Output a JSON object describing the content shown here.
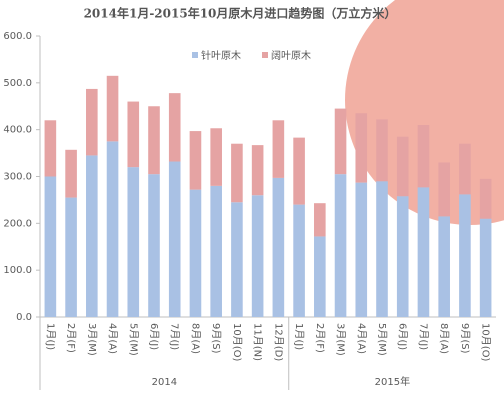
{
  "chart_data": {
    "type": "bar",
    "stacked": true,
    "title": "2014年1月-2015年10月原木月进口趋势图（万立方米）",
    "categories": [
      "1月(J)",
      "2月(F)",
      "3月(M)",
      "4月(A)",
      "5月(M)",
      "6月(J)",
      "7月(J)",
      "8月(A)",
      "9月(S)",
      "10月(O)",
      "11月(N)",
      "12月(D)",
      "1月(J)",
      "2月(F)",
      "3月(M)",
      "4月(A)",
      "5月(M)",
      "6月(J)",
      "7月(J)",
      "8月(A)",
      "9月(S)",
      "10月(O)"
    ],
    "year_labels": [
      "2014",
      "2015年"
    ],
    "series": [
      {
        "name": "针叶原木",
        "color": "#a9c1e4",
        "values": [
          300,
          255,
          345,
          375,
          320,
          305,
          332,
          272,
          280,
          245,
          260,
          297,
          240,
          172,
          305,
          287,
          290,
          258,
          277,
          215,
          262,
          210
        ]
      },
      {
        "name": "阔叶原木",
        "color": "#e5a3a3",
        "values": [
          120,
          102,
          142,
          140,
          140,
          145,
          146,
          125,
          123,
          125,
          107,
          123,
          143,
          71,
          140,
          148,
          132,
          127,
          133,
          115,
          108,
          85
        ]
      }
    ],
    "ylim": [
      0,
      600
    ],
    "yticks": [
      {
        "value": 0,
        "label": "0.0"
      },
      {
        "value": 100,
        "label": "100.0"
      },
      {
        "value": 200,
        "label": "200.0"
      },
      {
        "value": 300,
        "label": "300.0"
      },
      {
        "value": 400,
        "label": "400.0"
      },
      {
        "value": 500,
        "label": "500.0"
      },
      {
        "value": 600,
        "label": "600.0"
      }
    ],
    "legend": "top"
  }
}
